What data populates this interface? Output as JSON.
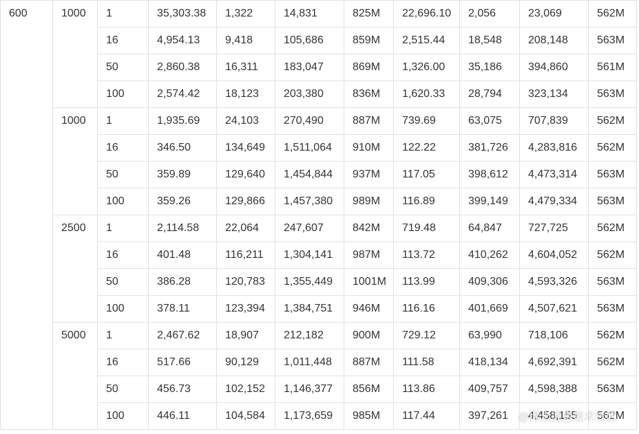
{
  "table": {
    "first_col": "600",
    "groups": [
      {
        "threads": "1000",
        "rows": [
          [
            "1",
            "35,303.38",
            "1,322",
            "14,831",
            "825M",
            "22,696.10",
            "2,056",
            "23,069",
            "562M"
          ],
          [
            "16",
            "4,954.13",
            "9,418",
            "105,686",
            "859M",
            "2,515.44",
            "18,548",
            "208,148",
            "563M"
          ],
          [
            "50",
            "2,860.38",
            "16,311",
            "183,047",
            "869M",
            "1,326.00",
            "35,186",
            "394,860",
            "561M"
          ],
          [
            "100",
            "2,574.42",
            "18,123",
            "203,380",
            "836M",
            "1,620.33",
            "28,794",
            "323,134",
            "563M"
          ]
        ]
      },
      {
        "threads": "1000",
        "rows": [
          [
            "1",
            "1,935.69",
            "24,103",
            "270,490",
            "887M",
            "739.69",
            "63,075",
            "707,839",
            "562M"
          ],
          [
            "16",
            "346.50",
            "134,649",
            "1,511,064",
            "910M",
            "122.22",
            "381,726",
            "4,283,816",
            "562M"
          ],
          [
            "50",
            "359.89",
            "129,640",
            "1,454,844",
            "937M",
            "117.05",
            "398,612",
            "4,473,314",
            "563M"
          ],
          [
            "100",
            "359.26",
            "129,866",
            "1,457,380",
            "989M",
            "116.89",
            "399,149",
            "4,479,334",
            "563M"
          ]
        ]
      },
      {
        "threads": "2500",
        "rows": [
          [
            "1",
            "2,114.58",
            "22,064",
            "247,607",
            "842M",
            "719.48",
            "64,847",
            "727,725",
            "562M"
          ],
          [
            "16",
            "401.48",
            "116,211",
            "1,304,141",
            "987M",
            "113.72",
            "410,262",
            "4,604,052",
            "562M"
          ],
          [
            "50",
            "386.28",
            "120,783",
            "1,355,449",
            "1001M",
            "113.99",
            "409,306",
            "4,593,326",
            "563M"
          ],
          [
            "100",
            "378.11",
            "123,394",
            "1,384,751",
            "946M",
            "116.16",
            "401,669",
            "4,507,621",
            "563M"
          ]
        ]
      },
      {
        "threads": "5000",
        "rows": [
          [
            "1",
            "2,467.62",
            "18,907",
            "212,182",
            "900M",
            "729.12",
            "63,990",
            "718,106",
            "562M"
          ],
          [
            "16",
            "517.66",
            "90,129",
            "1,011,448",
            "887M",
            "111.58",
            "418,134",
            "4,692,391",
            "562M"
          ],
          [
            "50",
            "456.73",
            "102,152",
            "1,146,377",
            "856M",
            "113.86",
            "409,757",
            "4,598,388",
            "563M"
          ],
          [
            "100",
            "446.11",
            "104,584",
            "1,173,659",
            "985M",
            "117.44",
            "397,261",
            "4,458,155",
            "562M"
          ]
        ]
      }
    ]
  },
  "watermark": "@稀土掘金技术社区"
}
